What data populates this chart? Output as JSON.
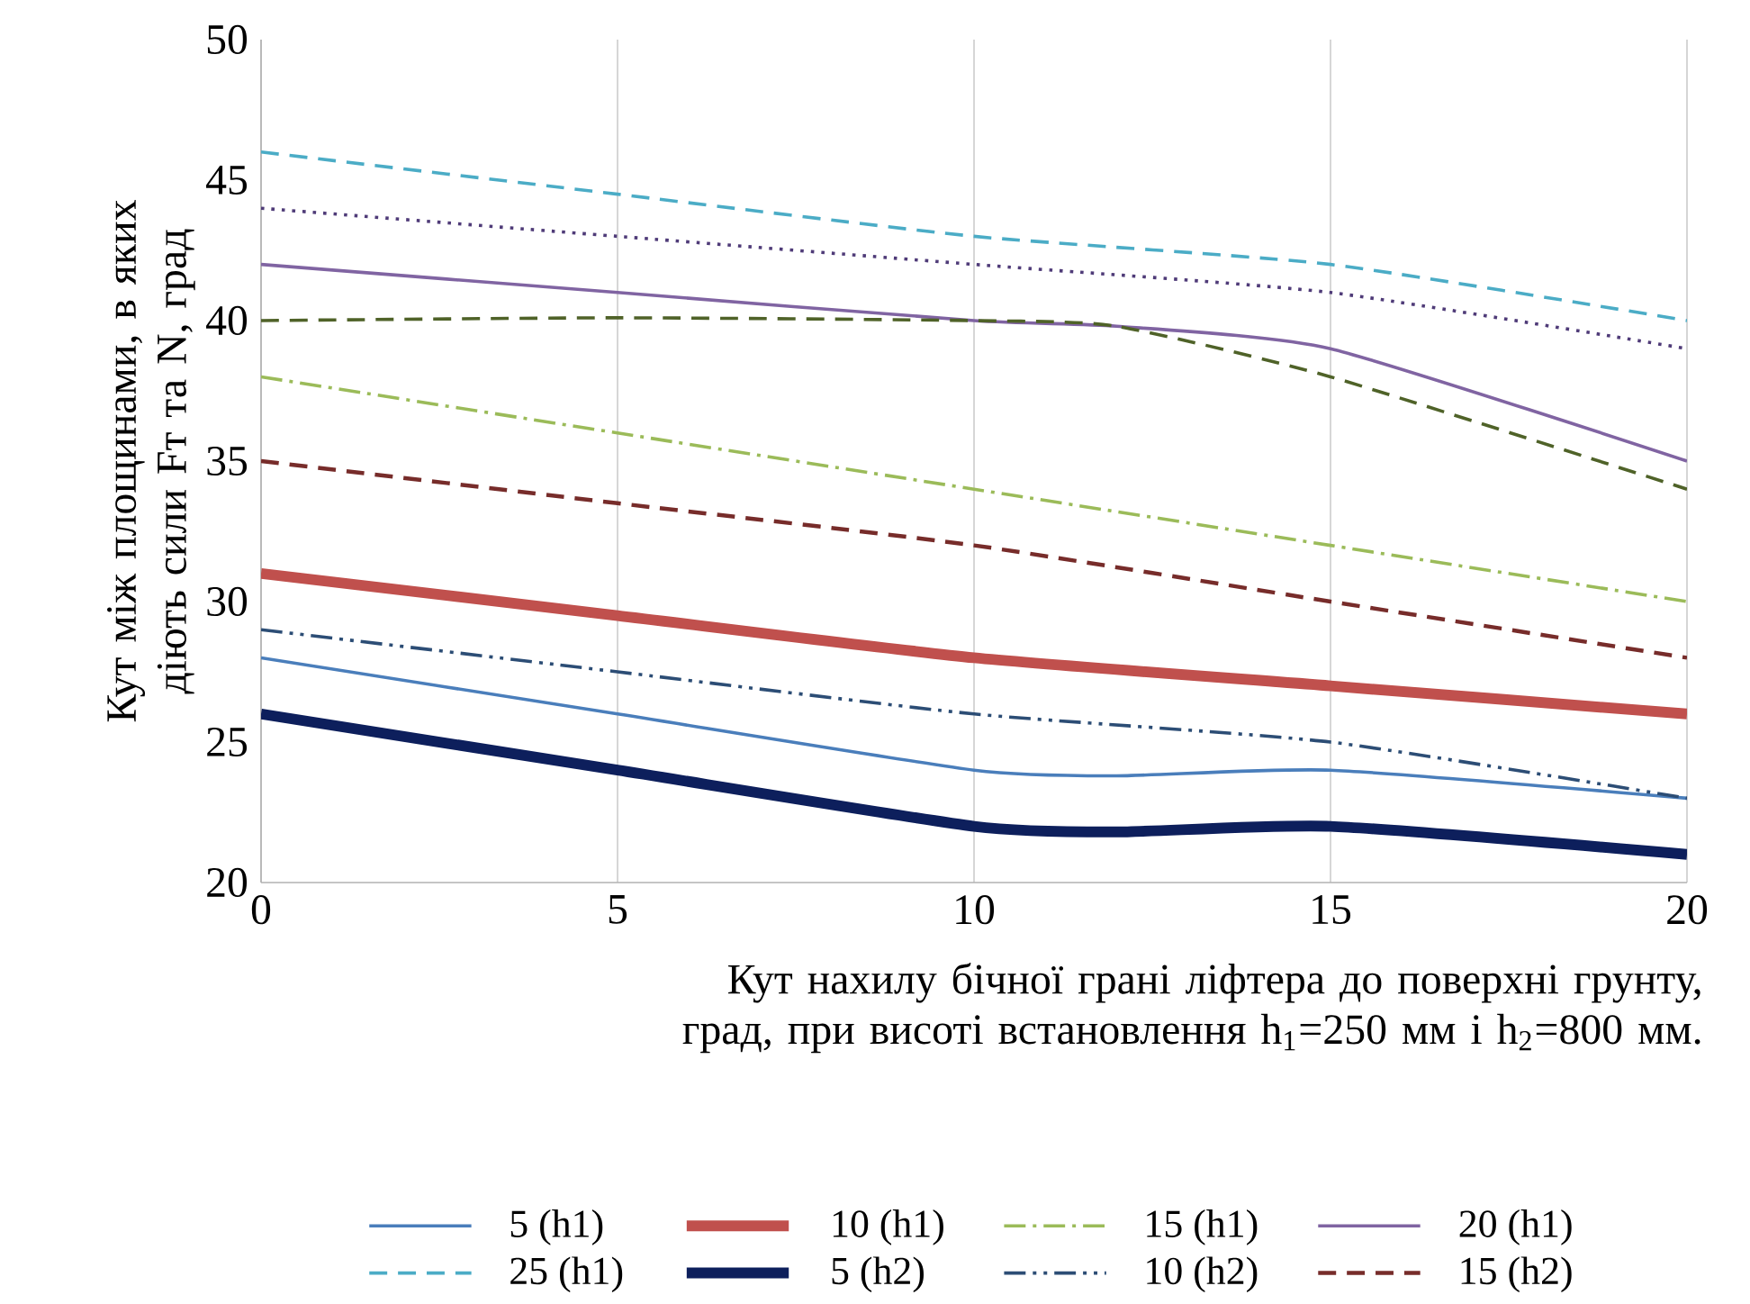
{
  "chart_data": {
    "type": "line",
    "xlabel": "Кут  нахилу  бічної грані ліфтера до поверхні грунту, град, при висоті встановлення h$_{1}$=250 мм і h$_{2}$=800 мм.",
    "ylabel": "Кут між площинами, в яких діють сили Fт та N, град",
    "x": [
      0,
      5,
      10,
      15,
      20
    ],
    "xlim": [
      0,
      20
    ],
    "xticks": [
      0,
      5,
      10,
      15,
      20
    ],
    "ylim": [
      20,
      50
    ],
    "yticks": [
      20,
      25,
      30,
      35,
      40,
      45,
      50
    ],
    "grid": "x",
    "legend": "bottom",
    "marker": "none",
    "series": [
      {
        "name": "5 (h1)",
        "color": "#4a7ebb",
        "line_style": "solid",
        "x": [
          0,
          5,
          10,
          12,
          15,
          20
        ],
        "values": [
          28,
          26,
          24,
          23.8,
          24,
          23
        ]
      },
      {
        "name": "10 (h1)",
        "color": "#c0504d",
        "line_style": "solid",
        "values": [
          31,
          29.5,
          28,
          27,
          26
        ]
      },
      {
        "name": "15 (h1)",
        "color": "#9bbb59",
        "line_style": "dashdot",
        "values": [
          38,
          36,
          34,
          32,
          30
        ]
      },
      {
        "name": "20 (h1)",
        "color": "#8064a2",
        "line_style": "solid",
        "x": [
          0,
          5,
          10,
          12,
          15,
          20
        ],
        "values": [
          42,
          41,
          40,
          39.8,
          39,
          35
        ]
      },
      {
        "name": "25 (h1)",
        "color": "#4bacc6",
        "line_style": "dashed",
        "values": [
          46,
          44.5,
          43,
          42,
          40
        ]
      },
      {
        "name": "5 (h2)",
        "color": "#0d1f5c",
        "line_style": "solid",
        "x": [
          0,
          5,
          10,
          12,
          15,
          20
        ],
        "values": [
          26,
          24,
          22,
          21.8,
          22,
          21
        ]
      },
      {
        "name": "10 (h2)",
        "color": "#2c4d75",
        "line_style": "dashdotdot",
        "values": [
          29,
          27.5,
          26,
          25,
          23
        ]
      },
      {
        "name": "15 (h2)",
        "color": "#772c2a",
        "line_style": "dashed",
        "values": [
          35,
          33.5,
          32,
          30,
          28
        ]
      },
      {
        "color": "#4f3b78",
        "line_style": "dotted",
        "values": [
          44,
          43,
          42,
          41,
          39
        ]
      },
      {
        "color": "#4f6228",
        "line_style": "dashed",
        "x": [
          0,
          5,
          10,
          12,
          15,
          20
        ],
        "values": [
          40,
          40.1,
          40,
          39.8,
          38,
          34
        ]
      }
    ]
  }
}
